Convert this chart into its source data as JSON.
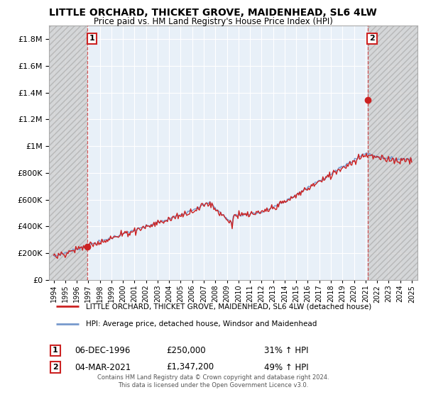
{
  "title": "LITTLE ORCHARD, THICKET GROVE, MAIDENHEAD, SL6 4LW",
  "subtitle": "Price paid vs. HM Land Registry's House Price Index (HPI)",
  "ylim": [
    0,
    1900000
  ],
  "yticks": [
    0,
    200000,
    400000,
    600000,
    800000,
    1000000,
    1200000,
    1400000,
    1600000,
    1800000
  ],
  "ytick_labels": [
    "£0",
    "£200K",
    "£400K",
    "£600K",
    "£800K",
    "£1M",
    "£1.2M",
    "£1.4M",
    "£1.6M",
    "£1.8M"
  ],
  "xlim_start": 1993.6,
  "xlim_end": 2025.5,
  "sale1_x": 1996.92,
  "sale1_y": 250000,
  "sale2_x": 2021.17,
  "sale2_y": 1347200,
  "legend_line1": "LITTLE ORCHARD, THICKET GROVE, MAIDENHEAD, SL6 4LW (detached house)",
  "legend_line2": "HPI: Average price, detached house, Windsor and Maidenhead",
  "ann1_date": "06-DEC-1996",
  "ann1_price": "£250,000",
  "ann1_hpi": "31% ↑ HPI",
  "ann2_date": "04-MAR-2021",
  "ann2_price": "£1,347,200",
  "ann2_hpi": "49% ↑ HPI",
  "footer": "Contains HM Land Registry data © Crown copyright and database right 2024.\nThis data is licensed under the Open Government Licence v3.0.",
  "line_color_red": "#cc2222",
  "line_color_blue": "#7799cc",
  "bg_plot_color": "#e8f0f8",
  "grid_color": "#ffffff",
  "ann_box_color": "#cc2222"
}
